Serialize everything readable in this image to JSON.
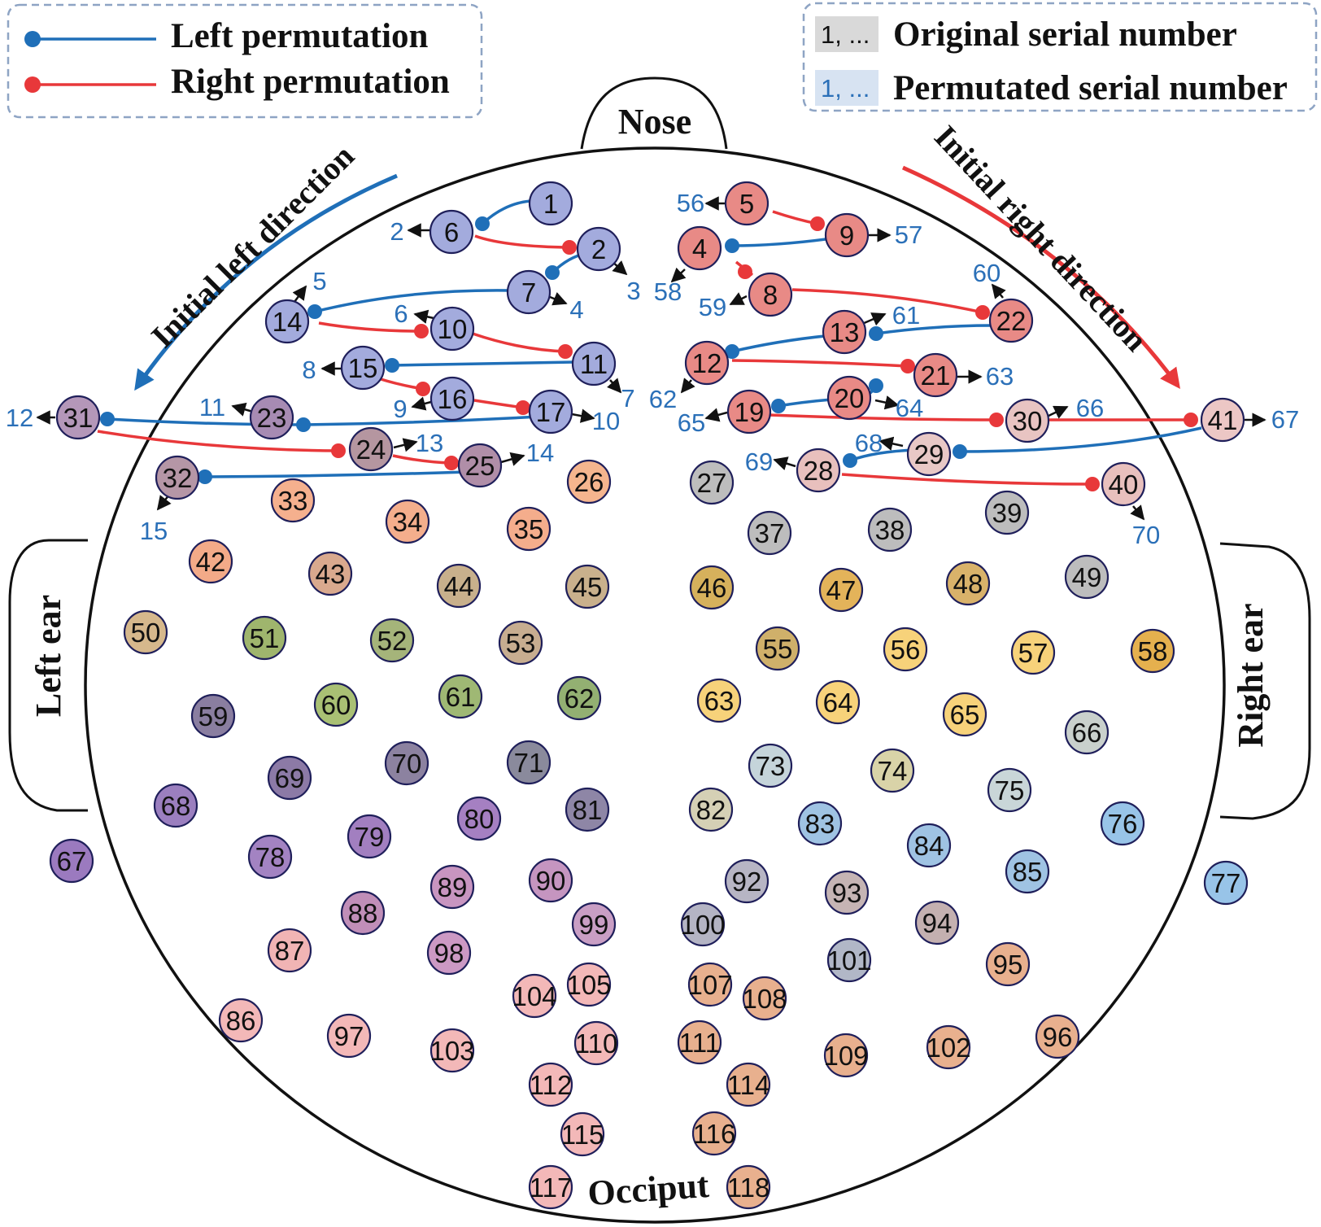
{
  "legend_left": {
    "left_label": "Left permutation",
    "right_label": "Right permutation",
    "left_color": "#1f6fb8",
    "right_color": "#e8383a"
  },
  "legend_right": {
    "orig_swatch": "1, ...",
    "orig_label": "Original serial number",
    "perm_swatch": "1, ...",
    "perm_label": "Permutated serial number"
  },
  "head": {
    "nose": "Nose",
    "left_ear": "Left ear",
    "right_ear": "Right ear",
    "occiput": "Occiput",
    "left_direction": "Initial left direction",
    "right_direction": "Initial right direction"
  },
  "colors": {
    "left_blue": "#a3abdd",
    "right_red": "#e88a86",
    "permutation_text": "#2b70b8"
  }
}
